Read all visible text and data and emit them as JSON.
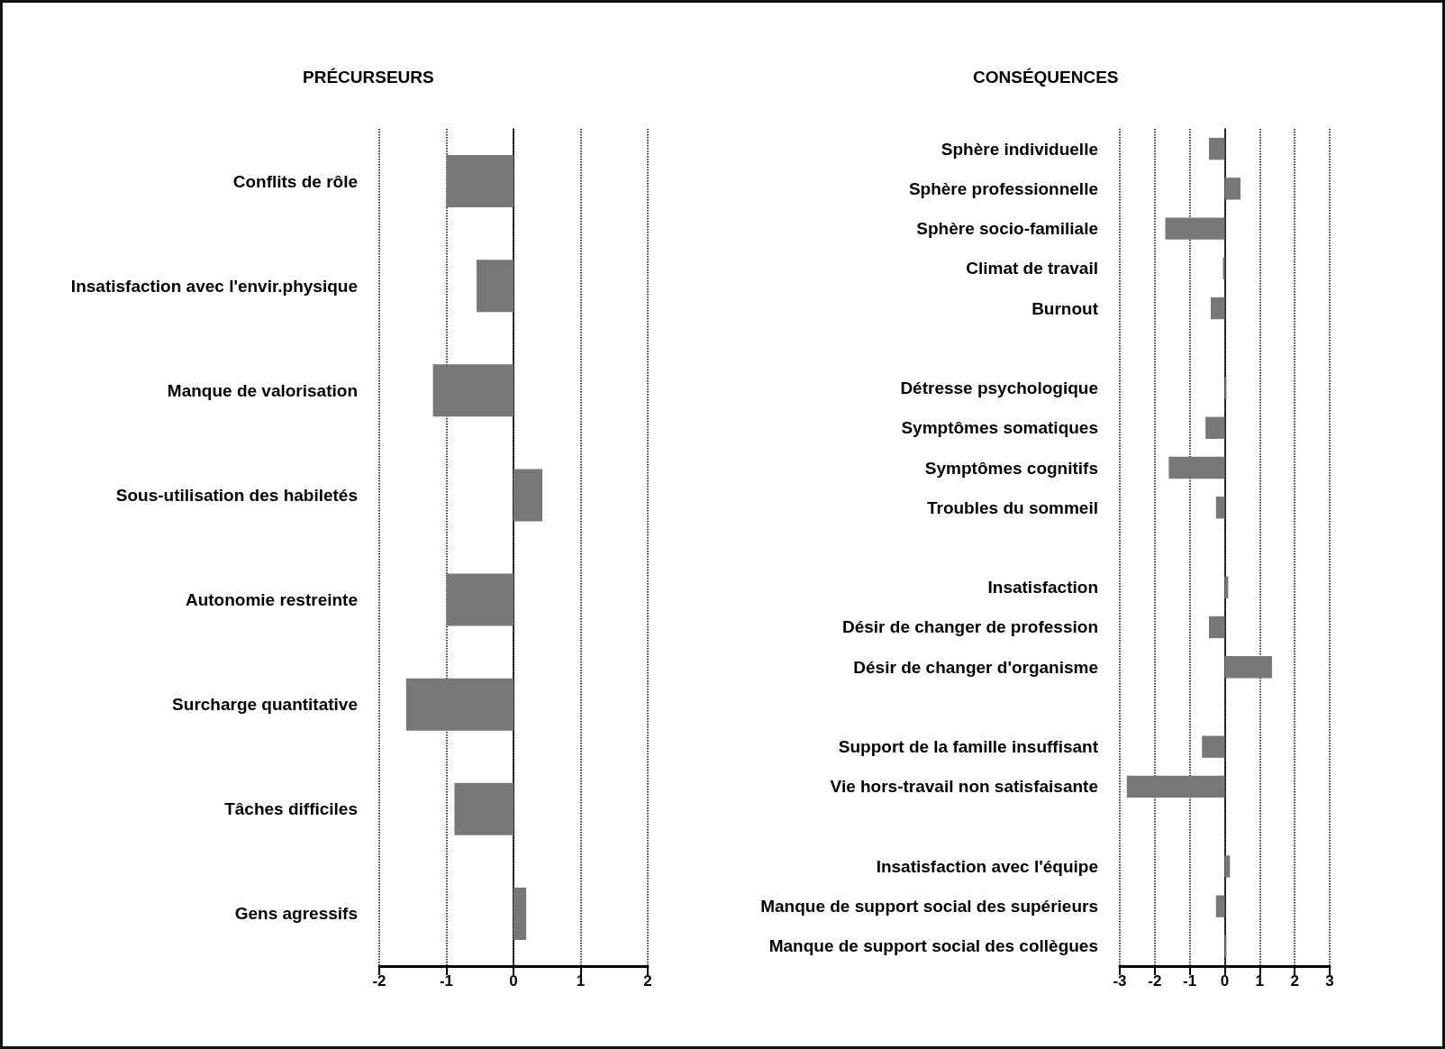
{
  "chart_data": [
    {
      "type": "bar",
      "orientation": "horizontal",
      "title": "PRÉCURSEURS",
      "categories": [
        "Conflits de rôle",
        "Insatisfaction avec l'envir.physique",
        "Manque de valorisation",
        "Sous-utilisation des habiletés",
        "Autonomie restreinte",
        "Surcharge quantitative",
        "Tâches difficiles",
        "Gens agressifs"
      ],
      "values": [
        -1.0,
        -0.55,
        -1.2,
        0.43,
        -1.0,
        -1.6,
        -0.88,
        0.19
      ],
      "color": "#777777",
      "xlim": [
        -2,
        2
      ],
      "xticks": [
        -2,
        -1,
        0,
        1,
        2
      ],
      "grid": "x"
    },
    {
      "type": "bar",
      "orientation": "horizontal",
      "title": "CONSÉQUENCES",
      "categories": [
        "Sphère individuelle",
        "Sphère professionnelle",
        "Sphère socio-familiale",
        "Climat de travail",
        "Burnout",
        null,
        "Détresse psychologique",
        "Symptômes somatiques",
        "Symptômes cognitifs",
        "Troubles du sommeil",
        null,
        "Insatisfaction",
        "Désir de changer de profession",
        "Désir de changer d'organisme",
        null,
        "Support de la famille insuffisant",
        "Vie hors-travail non satisfaisante",
        null,
        "Insatisfaction avec l'équipe",
        "Manque de support social des supérieurs",
        "Manque de support social des collègues"
      ],
      "values": [
        -0.45,
        0.45,
        -1.7,
        -0.05,
        -0.4,
        null,
        0.05,
        -0.55,
        -1.6,
        -0.25,
        null,
        0.1,
        -0.45,
        1.35,
        null,
        -0.65,
        -2.8,
        null,
        0.15,
        -0.25,
        0.05
      ],
      "color": "#777777",
      "xlim": [
        -3,
        3
      ],
      "xticks": [
        -3,
        -2,
        -1,
        0,
        1,
        2,
        3
      ],
      "grid": "x"
    }
  ]
}
